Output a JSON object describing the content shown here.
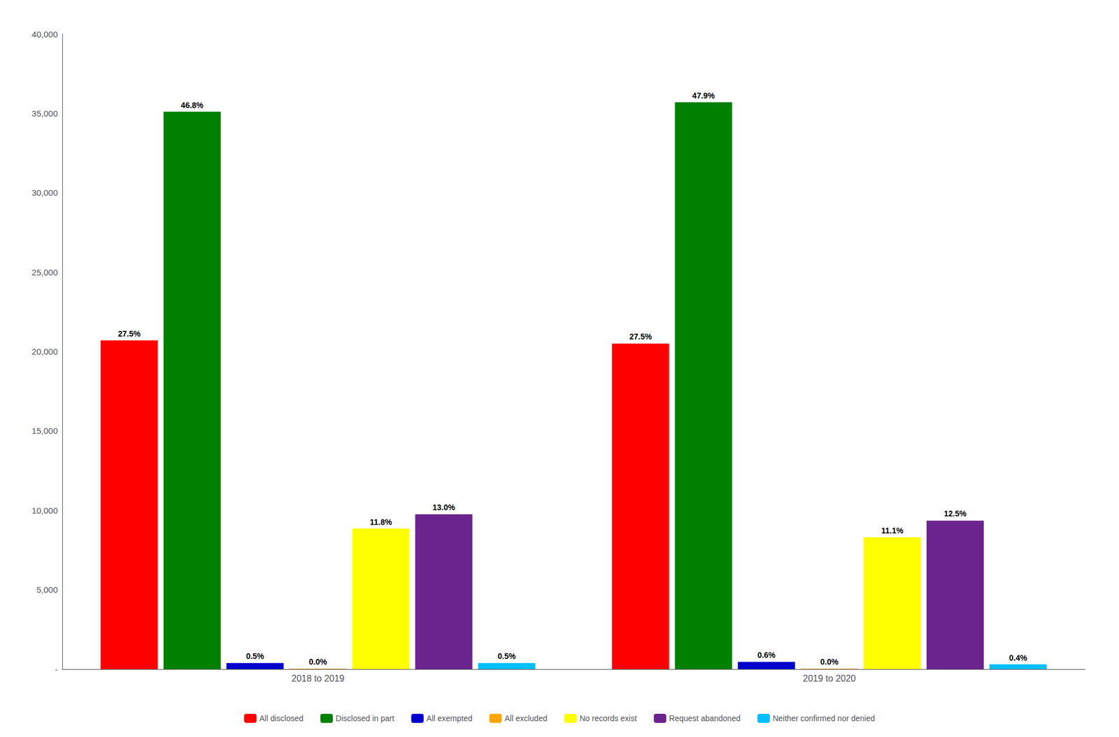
{
  "chart_data": {
    "type": "bar",
    "categories": [
      "2018 to 2019",
      "2019 to 2020"
    ],
    "series": [
      {
        "name": "All disclosed",
        "color": "#FF0000",
        "values": [
          20700,
          20500
        ],
        "annotations": [
          "27.5%",
          "27.5%"
        ]
      },
      {
        "name": "Disclosed in part",
        "color": "#008000",
        "values": [
          35100,
          35700
        ],
        "annotations": [
          "46.8%",
          "47.9%"
        ]
      },
      {
        "name": "All exempted",
        "color": "#0000CD",
        "values": [
          380,
          450
        ],
        "annotations": [
          "0.5%",
          "0.6%"
        ]
      },
      {
        "name": "All excluded",
        "color": "#FFA500",
        "values": [
          30,
          30
        ],
        "annotations": [
          "0.0%",
          "0.0%"
        ]
      },
      {
        "name": "No records exist",
        "color": "#FFFF00",
        "values": [
          8850,
          8300
        ],
        "annotations": [
          "11.8%",
          "11.1%"
        ]
      },
      {
        "name": "Request abandoned",
        "color": "#6B238E",
        "values": [
          9750,
          9350
        ],
        "annotations": [
          "13.0%",
          "12.5%"
        ]
      },
      {
        "name": "Neither confirmed nor denied",
        "color": "#00BFFF",
        "values": [
          380,
          300
        ],
        "annotations": [
          "0.5%",
          "0.4%"
        ]
      }
    ],
    "ylim": [
      0,
      40000
    ],
    "yticks": [
      {
        "value": 0,
        "label": "-"
      },
      {
        "value": 5000,
        "label": "5,000"
      },
      {
        "value": 10000,
        "label": "10,000"
      },
      {
        "value": 15000,
        "label": "15,000"
      },
      {
        "value": 20000,
        "label": "20,000"
      },
      {
        "value": 25000,
        "label": "25,000"
      },
      {
        "value": 30000,
        "label": "30,000"
      },
      {
        "value": 35000,
        "label": "35,000"
      },
      {
        "value": 40000,
        "label": "40,000"
      }
    ],
    "grid": false,
    "legend": "bottom"
  }
}
